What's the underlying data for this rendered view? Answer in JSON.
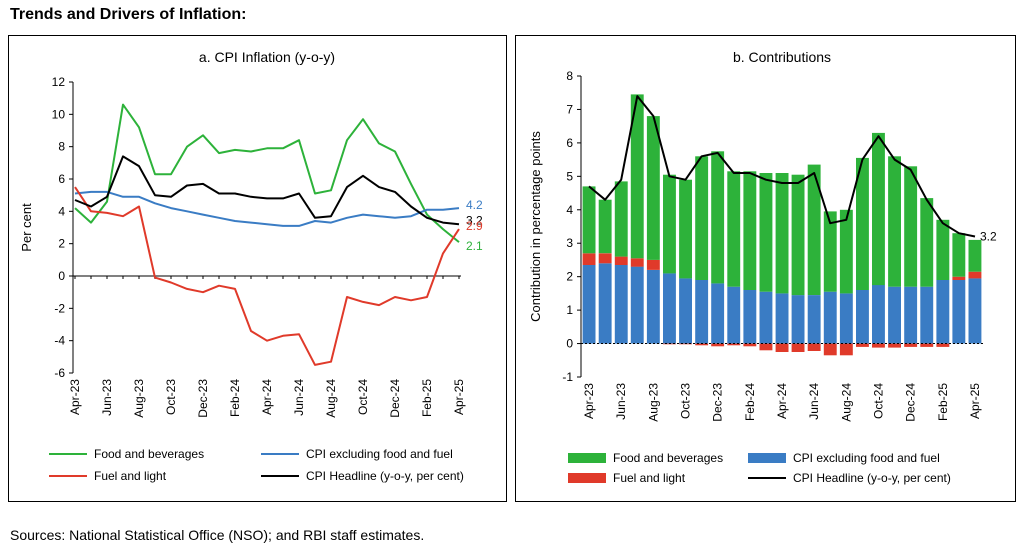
{
  "figure_title": "Trends and Drivers of Inflation:",
  "source_note": "Sources:  National Statistical Office (NSO); and RBI staff estimates.",
  "chart_data": [
    {
      "type": "line",
      "title": "a. CPI Inflation (y-o-y)",
      "xlabel": "",
      "ylabel": "Per cent",
      "ylim": [
        -6,
        12
      ],
      "yticks": [
        -6,
        -4,
        -2,
        0,
        2,
        4,
        6,
        8,
        10,
        12
      ],
      "x": [
        "Apr-23",
        "May-23",
        "Jun-23",
        "Jul-23",
        "Aug-23",
        "Sep-23",
        "Oct-23",
        "Nov-23",
        "Dec-23",
        "Jan-24",
        "Feb-24",
        "Mar-24",
        "Apr-24",
        "May-24",
        "Jun-24",
        "Jul-24",
        "Aug-24",
        "Sep-24",
        "Oct-24",
        "Nov-24",
        "Dec-24",
        "Jan-25",
        "Feb-25",
        "Mar-25",
        "Apr-25"
      ],
      "x_tick_labels": [
        "Apr-23",
        "Jun-23",
        "Aug-23",
        "Oct-23",
        "Dec-23",
        "Feb-24",
        "Apr-24",
        "Jun-24",
        "Aug-24",
        "Oct-24",
        "Dec-24",
        "Feb-25",
        "Apr-25"
      ],
      "grid": false,
      "series": [
        {
          "name": "Food and beverages",
          "color": "#2db23a",
          "values": [
            4.2,
            3.3,
            4.6,
            10.6,
            9.2,
            6.3,
            6.3,
            8.0,
            8.7,
            7.6,
            7.8,
            7.7,
            7.9,
            7.9,
            8.4,
            5.1,
            5.3,
            8.4,
            9.7,
            8.2,
            7.7,
            5.7,
            3.8,
            2.9,
            2.1
          ]
        },
        {
          "name": "CPI excluding food and fuel",
          "color": "#3a7cc4",
          "values": [
            5.1,
            5.2,
            5.2,
            4.9,
            4.9,
            4.5,
            4.2,
            4.0,
            3.8,
            3.6,
            3.4,
            3.3,
            3.2,
            3.1,
            3.1,
            3.4,
            3.3,
            3.6,
            3.8,
            3.7,
            3.6,
            3.7,
            4.1,
            4.1,
            4.2
          ]
        },
        {
          "name": "Fuel and light",
          "color": "#e03a2a",
          "values": [
            5.5,
            4.0,
            3.9,
            3.7,
            4.3,
            -0.1,
            -0.4,
            -0.8,
            -1.0,
            -0.6,
            -0.8,
            -3.4,
            -4.0,
            -3.7,
            -3.6,
            -5.5,
            -5.3,
            -1.3,
            -1.6,
            -1.8,
            -1.3,
            -1.5,
            -1.3,
            1.4,
            2.9
          ]
        },
        {
          "name": "CPI Headline (y-o-y, per cent)",
          "color": "#000000",
          "values": [
            4.7,
            4.3,
            4.9,
            7.4,
            6.8,
            5.0,
            4.9,
            5.6,
            5.7,
            5.1,
            5.1,
            4.9,
            4.8,
            4.8,
            5.1,
            3.6,
            3.7,
            5.5,
            6.2,
            5.5,
            5.2,
            4.3,
            3.6,
            3.3,
            3.2
          ]
        }
      ],
      "end_labels": [
        {
          "series": "CPI excluding food and fuel",
          "text": "4.2"
        },
        {
          "series": "CPI Headline (y-o-y, per cent)",
          "text": "3.2"
        },
        {
          "series": "Fuel and light",
          "text": "2.9"
        },
        {
          "series": "Food and beverages",
          "text": "2.1"
        }
      ],
      "legend": {
        "placement": "bottom",
        "items": [
          "Food and beverages",
          "CPI excluding food and fuel",
          "Fuel and light",
          "CPI Headline (y-o-y, per cent)"
        ]
      }
    },
    {
      "type": "bar",
      "stacked": true,
      "title": "b. Contributions",
      "xlabel": "",
      "ylabel": "Contribution in percentage points",
      "ylim": [
        -1,
        8
      ],
      "yticks": [
        -1,
        0,
        1,
        2,
        3,
        4,
        5,
        6,
        7,
        8
      ],
      "categories": [
        "Apr-23",
        "May-23",
        "Jun-23",
        "Jul-23",
        "Aug-23",
        "Sep-23",
        "Oct-23",
        "Nov-23",
        "Dec-23",
        "Jan-24",
        "Feb-24",
        "Mar-24",
        "Apr-24",
        "May-24",
        "Jun-24",
        "Jul-24",
        "Aug-24",
        "Sep-24",
        "Oct-24",
        "Nov-24",
        "Dec-24",
        "Jan-25",
        "Feb-25",
        "Mar-25",
        "Apr-25"
      ],
      "x_tick_labels": [
        "Apr-23",
        "Jun-23",
        "Aug-23",
        "Oct-23",
        "Dec-23",
        "Feb-24",
        "Apr-24",
        "Jun-24",
        "Aug-24",
        "Oct-24",
        "Dec-24",
        "Feb-25",
        "Apr-25"
      ],
      "grid": false,
      "series": [
        {
          "name": "CPI excluding food and fuel",
          "color": "#3a7cc4",
          "values": [
            2.35,
            2.4,
            2.35,
            2.3,
            2.2,
            2.1,
            1.95,
            1.9,
            1.8,
            1.7,
            1.6,
            1.55,
            1.5,
            1.45,
            1.45,
            1.55,
            1.5,
            1.6,
            1.75,
            1.7,
            1.7,
            1.7,
            1.9,
            1.9,
            1.95
          ]
        },
        {
          "name": "Fuel and light",
          "color": "#e03a2a",
          "values": [
            0.35,
            0.3,
            0.25,
            0.25,
            0.3,
            -0.02,
            -0.02,
            -0.05,
            -0.08,
            -0.05,
            -0.08,
            -0.2,
            -0.25,
            -0.25,
            -0.22,
            -0.35,
            -0.35,
            -0.1,
            -0.12,
            -0.12,
            -0.1,
            -0.1,
            -0.1,
            0.1,
            0.2
          ]
        },
        {
          "name": "Food and beverages",
          "color": "#2db23a",
          "values": [
            2.0,
            1.6,
            2.25,
            4.9,
            4.3,
            2.95,
            2.95,
            3.7,
            3.95,
            3.45,
            3.55,
            3.55,
            3.6,
            3.6,
            3.9,
            2.4,
            2.5,
            3.95,
            4.55,
            3.9,
            3.6,
            2.65,
            1.8,
            1.3,
            0.95
          ]
        }
      ],
      "line_series": {
        "name": "CPI Headline (y-o-y, per cent)",
        "color": "#000000",
        "values": [
          4.7,
          4.3,
          4.9,
          7.4,
          6.8,
          5.0,
          4.9,
          5.6,
          5.7,
          5.1,
          5.1,
          4.9,
          4.8,
          4.8,
          5.1,
          3.6,
          3.7,
          5.5,
          6.2,
          5.5,
          5.2,
          4.3,
          3.6,
          3.3,
          3.2
        ]
      },
      "end_labels": [
        {
          "series": "CPI Headline (y-o-y, per cent)",
          "text": "3.2"
        }
      ],
      "legend": {
        "placement": "bottom",
        "items": [
          "Food and beverages",
          "CPI excluding food and fuel",
          "Fuel and light",
          "CPI Headline (y-o-y, per cent)"
        ]
      }
    }
  ]
}
